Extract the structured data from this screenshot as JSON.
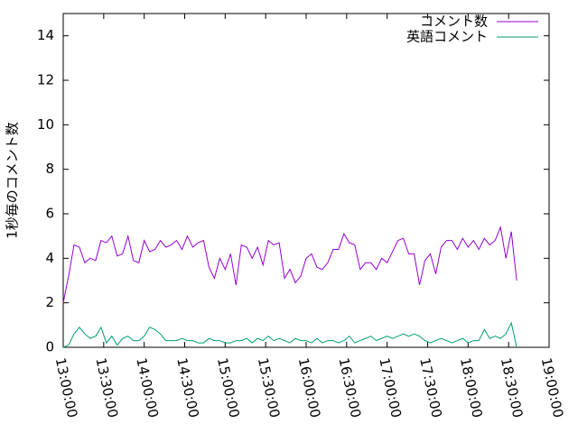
{
  "chart_data": {
    "type": "line",
    "y_label": "1秒毎のコメント数",
    "x": [
      "13:00:00",
      "13:04:00",
      "13:08:00",
      "13:12:00",
      "13:16:00",
      "13:20:00",
      "13:24:00",
      "13:28:00",
      "13:32:00",
      "13:36:00",
      "13:40:00",
      "13:44:00",
      "13:48:00",
      "13:52:00",
      "13:56:00",
      "14:00:00",
      "14:04:00",
      "14:08:00",
      "14:12:00",
      "14:16:00",
      "14:20:00",
      "14:24:00",
      "14:28:00",
      "14:32:00",
      "14:36:00",
      "14:40:00",
      "14:44:00",
      "14:48:00",
      "14:52:00",
      "14:56:00",
      "15:00:00",
      "15:04:00",
      "15:08:00",
      "15:12:00",
      "15:16:00",
      "15:20:00",
      "15:24:00",
      "15:28:00",
      "15:32:00",
      "15:36:00",
      "15:40:00",
      "15:44:00",
      "15:48:00",
      "15:52:00",
      "15:56:00",
      "16:00:00",
      "16:04:00",
      "16:08:00",
      "16:12:00",
      "16:16:00",
      "16:20:00",
      "16:24:00",
      "16:28:00",
      "16:32:00",
      "16:36:00",
      "16:40:00",
      "16:44:00",
      "16:48:00",
      "16:52:00",
      "16:56:00",
      "17:00:00",
      "17:04:00",
      "17:08:00",
      "17:12:00",
      "17:16:00",
      "17:20:00",
      "17:24:00",
      "17:28:00",
      "17:32:00",
      "17:36:00",
      "17:40:00",
      "17:44:00",
      "17:48:00",
      "17:52:00",
      "17:56:00",
      "18:00:00",
      "18:04:00",
      "18:08:00",
      "18:12:00",
      "18:16:00",
      "18:20:00",
      "18:24:00",
      "18:28:00",
      "18:32:00",
      "18:36:00"
    ],
    "series": [
      {
        "name": "コメント数",
        "color": "#9400d3",
        "values": [
          2.0,
          3.2,
          4.6,
          4.5,
          3.8,
          4.0,
          3.9,
          4.8,
          4.7,
          5.0,
          4.1,
          4.2,
          5.0,
          3.9,
          3.8,
          4.8,
          4.3,
          4.4,
          4.8,
          4.5,
          4.6,
          4.8,
          4.4,
          5.0,
          4.5,
          4.7,
          4.8,
          3.6,
          3.1,
          4.0,
          3.5,
          4.2,
          2.8,
          4.6,
          4.5,
          4.0,
          4.5,
          3.7,
          4.8,
          4.6,
          4.7,
          3.1,
          3.5,
          2.9,
          3.2,
          4.0,
          4.2,
          3.6,
          3.5,
          3.8,
          4.4,
          4.4,
          5.1,
          4.7,
          4.6,
          3.5,
          3.8,
          3.8,
          3.5,
          4.0,
          3.8,
          4.3,
          4.8,
          4.9,
          4.2,
          4.2,
          2.8,
          3.9,
          4.2,
          3.3,
          4.5,
          4.8,
          4.8,
          4.4,
          4.9,
          4.5,
          4.8,
          4.4,
          4.9,
          4.6,
          4.8,
          5.4,
          4.0,
          5.2,
          3.0
        ]
      },
      {
        "name": "英語コメント",
        "color": "#009e73",
        "values": [
          0,
          0.1,
          0.6,
          0.9,
          0.6,
          0.4,
          0.5,
          0.9,
          0.2,
          0.5,
          0.1,
          0.4,
          0.5,
          0.3,
          0.3,
          0.5,
          0.9,
          0.8,
          0.6,
          0.3,
          0.3,
          0.3,
          0.4,
          0.3,
          0.3,
          0.2,
          0.2,
          0.4,
          0.3,
          0.3,
          0.2,
          0.2,
          0.3,
          0.3,
          0.4,
          0.2,
          0.4,
          0.3,
          0.5,
          0.3,
          0.4,
          0.3,
          0.2,
          0.4,
          0.3,
          0.3,
          0.2,
          0.4,
          0.2,
          0.3,
          0.3,
          0.2,
          0.3,
          0.5,
          0.2,
          0.3,
          0.4,
          0.5,
          0.3,
          0.4,
          0.5,
          0.4,
          0.5,
          0.6,
          0.5,
          0.6,
          0.5,
          0.3,
          0.2,
          0.3,
          0.4,
          0.3,
          0.2,
          0.3,
          0.4,
          0.2,
          0.3,
          0.3,
          0.8,
          0.4,
          0.5,
          0.4,
          0.6,
          1.1,
          0.0
        ]
      }
    ],
    "xlim": [
      "13:00:00",
      "19:00:00"
    ],
    "xticks": [
      "13:00:00",
      "13:30:00",
      "14:00:00",
      "14:30:00",
      "15:00:00",
      "15:30:00",
      "16:00:00",
      "16:30:00",
      "17:00:00",
      "17:30:00",
      "18:00:00",
      "18:30:00",
      "19:00:00"
    ],
    "ylim": [
      0,
      15
    ],
    "yticks": [
      0,
      2,
      4,
      6,
      8,
      10,
      12,
      14
    ],
    "legend": "top-right"
  }
}
